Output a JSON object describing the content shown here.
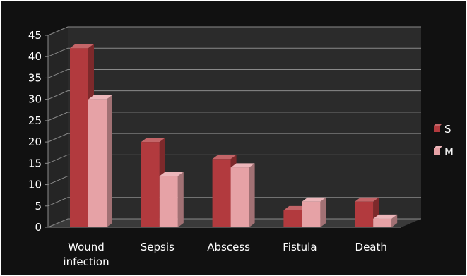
{
  "chart_data": {
    "type": "bar",
    "categories": [
      "Wound infection",
      "Sepsis",
      "Abscess",
      "Fistula",
      "Death"
    ],
    "category_lines": [
      [
        "Wound",
        "infection"
      ],
      [
        "Sepsis"
      ],
      [
        "Abscess"
      ],
      [
        "Fistula"
      ],
      [
        "Death"
      ]
    ],
    "series": [
      {
        "name": "S",
        "values": [
          42,
          20,
          16,
          4,
          6
        ],
        "color": "#b23a3e"
      },
      {
        "name": "M",
        "values": [
          30,
          12,
          14,
          6,
          2
        ],
        "color": "#e6a2a6"
      }
    ],
    "ylim": [
      0,
      45
    ],
    "yticks": [
      0,
      5,
      10,
      15,
      20,
      25,
      30,
      35,
      40,
      45
    ],
    "grid": true,
    "legend_position": "right",
    "three_d": true,
    "background": "#111111",
    "wall_color": "#2b2b2b",
    "grid_color": "#8a8a8a"
  }
}
